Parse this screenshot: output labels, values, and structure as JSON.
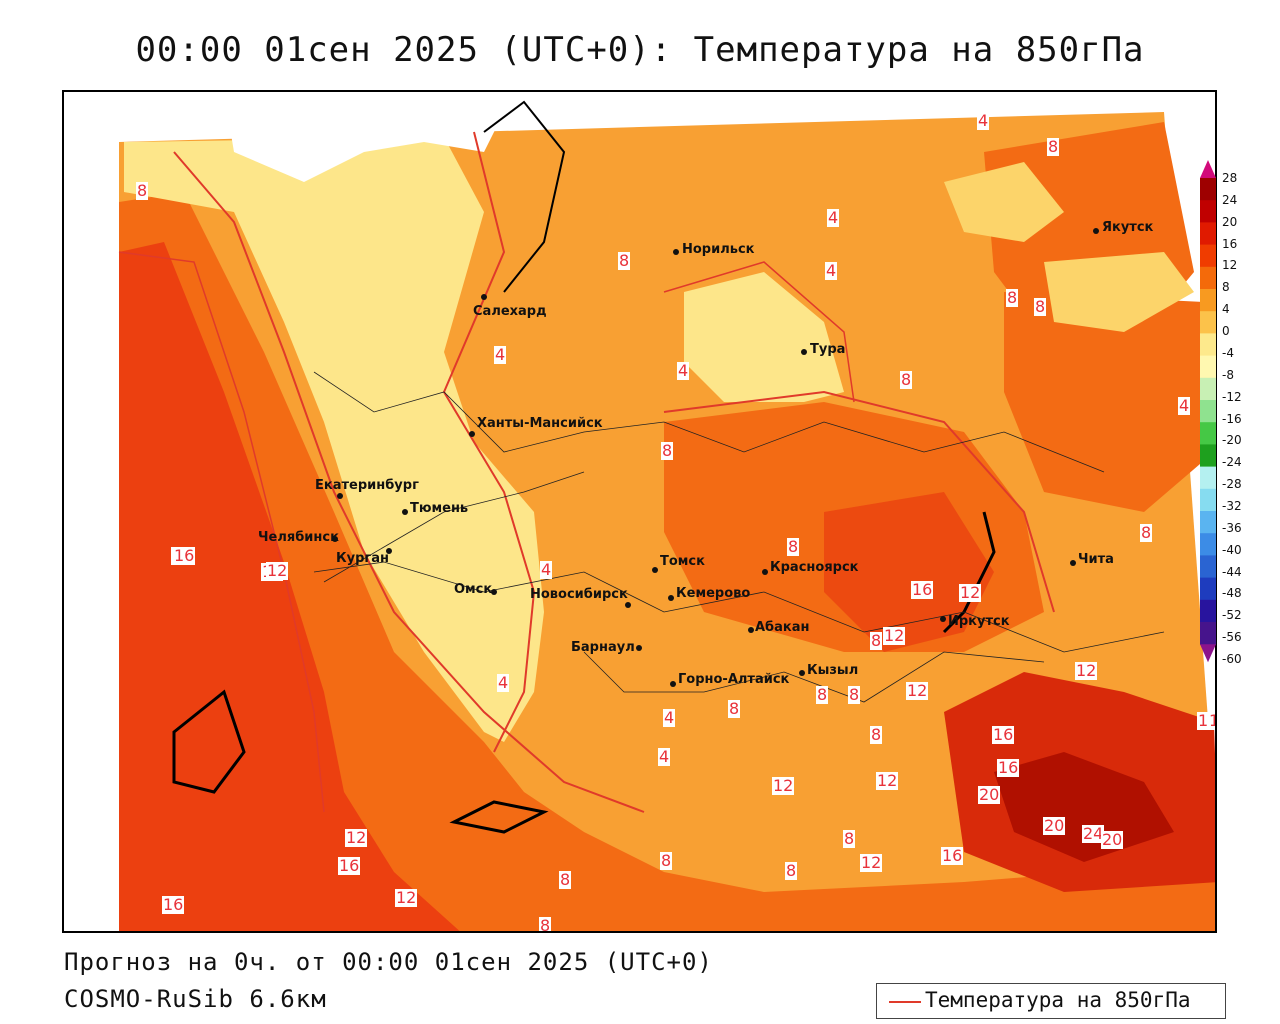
{
  "title": "00:00 01сен 2025 (UTC+0): Температура на 850гПа",
  "footer": {
    "line1": "Прогноз на 0ч. от 00:00 01сен 2025 (UTC+0)",
    "line2": "COSMO-RuSib 6.6км"
  },
  "legend": {
    "label": "Температура на 850гПа",
    "line_color": "#e03a2a"
  },
  "colorbar": {
    "ticks": [
      "28",
      "24",
      "20",
      "16",
      "12",
      "8",
      "4",
      "0",
      "-4",
      "-8",
      "-12",
      "-16",
      "-20",
      "-24",
      "-28",
      "-32",
      "-36",
      "-40",
      "-44",
      "-48",
      "-52",
      "-56",
      "-60"
    ],
    "colors": [
      "#d20a7a",
      "#9e0000",
      "#c00000",
      "#e01a00",
      "#f03c00",
      "#f46a0a",
      "#f89a20",
      "#fcc24a",
      "#fde98c",
      "#fff8b0",
      "#c8f0b4",
      "#8fe28f",
      "#45c845",
      "#1ea01e",
      "#b4f0f0",
      "#86dcf0",
      "#5ab4f0",
      "#3c8ce6",
      "#2a64d2",
      "#1e3cbe",
      "#28149e",
      "#46148c",
      "#8c148c"
    ]
  },
  "cities": [
    {
      "name": "Якутск"
    },
    {
      "name": "Норильск"
    },
    {
      "name": "Салехард"
    },
    {
      "name": "Тура"
    },
    {
      "name": "Ханты-Мансийск"
    },
    {
      "name": "Екатеринбург"
    },
    {
      "name": "Тюмень"
    },
    {
      "name": "Челябинск"
    },
    {
      "name": "Курган"
    },
    {
      "name": "Омск"
    },
    {
      "name": "Томск"
    },
    {
      "name": "Красноярск"
    },
    {
      "name": "Новосибирск"
    },
    {
      "name": "Кемерово"
    },
    {
      "name": "Абакан"
    },
    {
      "name": "Барнаул"
    },
    {
      "name": "Горно-Алтайск"
    },
    {
      "name": "Кызыл"
    },
    {
      "name": "Иркутск"
    },
    {
      "name": "Чита"
    }
  ],
  "contour_labels": [
    "4",
    "8",
    "8",
    "4",
    "4",
    "8",
    "8",
    "8",
    "4",
    "4",
    "8",
    "4",
    "8",
    "8",
    "8",
    "16",
    "12",
    "4",
    "4",
    "8",
    "16",
    "12",
    "8",
    "12",
    "12",
    "8",
    "4",
    "4",
    "8",
    "12",
    "16",
    "8",
    "12",
    "16",
    "16",
    "20",
    "20",
    "24",
    "20",
    "12",
    "16",
    "12",
    "16",
    "8",
    "12",
    "8",
    "8",
    "8",
    "16",
    "16",
    "12",
    "8",
    "12",
    "16"
  ]
}
